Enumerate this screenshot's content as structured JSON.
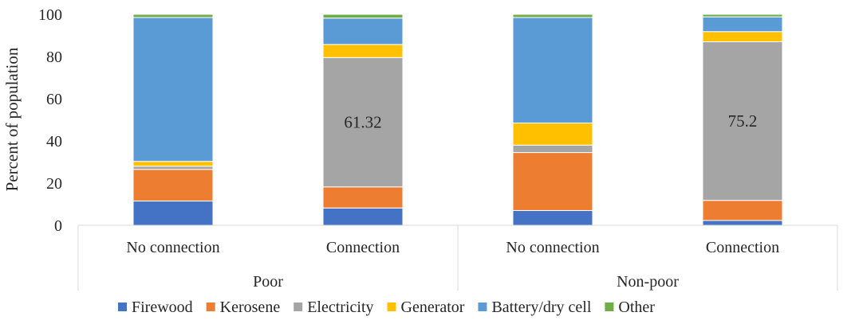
{
  "chart_data": {
    "type": "bar",
    "stacked": true,
    "groups": [
      {
        "label": "Poor",
        "categories": [
          "No connection",
          "Connection"
        ]
      },
      {
        "label": "Non-poor",
        "categories": [
          "No connection",
          "Connection"
        ]
      }
    ],
    "series": [
      {
        "name": "Firewood",
        "color": "#4472C4",
        "values": [
          11.5,
          8.2,
          7.0,
          2.3
        ]
      },
      {
        "name": "Kerosene",
        "color": "#ED7D31",
        "values": [
          15.0,
          10.0,
          27.5,
          9.5
        ]
      },
      {
        "name": "Electricity",
        "color": "#A5A5A5",
        "values": [
          1.5,
          61.32,
          3.5,
          75.2
        ]
      },
      {
        "name": "Generator",
        "color": "#FFC000",
        "values": [
          2.3,
          6.2,
          10.5,
          4.8
        ]
      },
      {
        "name": "Battery/dry cell",
        "color": "#5B9BD5",
        "values": [
          68.2,
          12.5,
          50.0,
          7.0
        ]
      },
      {
        "name": "Other",
        "color": "#70AD47",
        "values": [
          1.5,
          1.78,
          1.5,
          1.2
        ]
      }
    ],
    "data_labels": [
      {
        "series": "Electricity",
        "index": 1,
        "text": "61.32"
      },
      {
        "series": "Electricity",
        "index": 3,
        "text": "75.2"
      }
    ],
    "ylabel": "Percent of population",
    "ylim": [
      0,
      100
    ],
    "yticks": [
      0,
      20,
      40,
      60,
      80,
      100
    ],
    "grid": false,
    "legend_position": "bottom"
  }
}
